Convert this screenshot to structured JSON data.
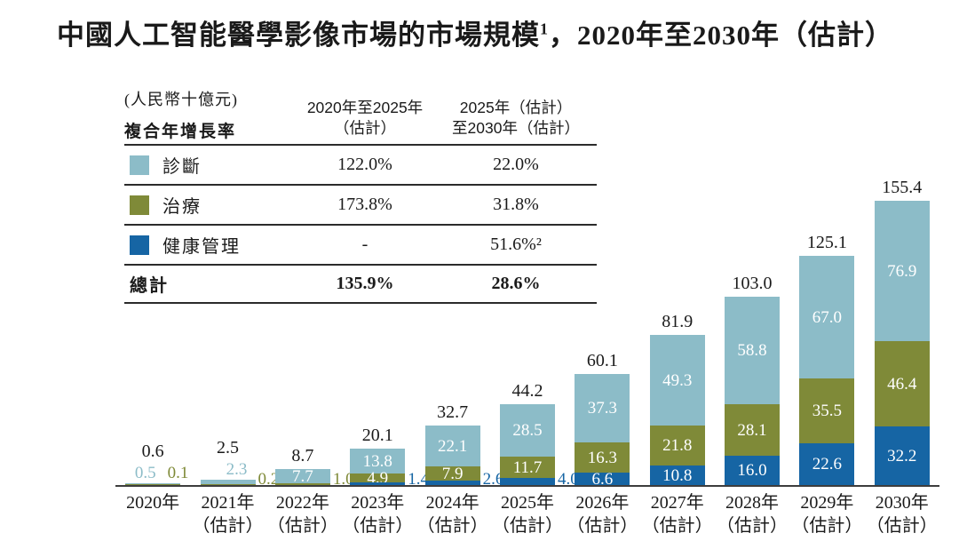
{
  "title": {
    "text": "中國人工智能醫學影像市場的市場規模",
    "footnote_marker": "1",
    "suffix": "，2020年至2030年（估計）"
  },
  "unit_note": "(人民幣十億元)",
  "cagr_table": {
    "row_header": "複合年增長率",
    "col1_header_line1": "2020年至2025年",
    "col1_header_line2": "（估計）",
    "col2_header_line1": "2025年（估計）",
    "col2_header_line2": "至2030年（估計）",
    "rows": [
      {
        "label": "診斷",
        "series": "diagnosis",
        "cagr_2020_2025": "122.0%",
        "cagr_2025_2030": "22.0%"
      },
      {
        "label": "治療",
        "series": "treatment",
        "cagr_2020_2025": "173.8%",
        "cagr_2025_2030": "31.8%"
      },
      {
        "label": "健康管理",
        "series": "health",
        "cagr_2020_2025": "-",
        "cagr_2025_2030": "51.6%²"
      }
    ],
    "total_row": {
      "label": "總計",
      "cagr_2020_2025": "135.9%",
      "cagr_2025_2030": "28.6%"
    }
  },
  "chart_data": {
    "type": "bar",
    "stacked": true,
    "unit": "人民幣十億元",
    "y_axis_visible": false,
    "ylim": [
      0,
      160
    ],
    "colors": {
      "axis": "#3d3d3d",
      "text": "#1a1a1a"
    },
    "series": [
      {
        "key": "diagnosis",
        "name": "診斷",
        "color": "#8CBCC8"
      },
      {
        "key": "treatment",
        "name": "治療",
        "color": "#7F8A38"
      },
      {
        "key": "health",
        "name": "健康管理",
        "color": "#1665A4"
      }
    ],
    "years": [
      {
        "label": "2020年",
        "sublabel": "",
        "total": 0.6,
        "total_label": "0.6",
        "segments": [
          {
            "series": "diagnosis",
            "value": 0.5,
            "display": "0.5",
            "label_pos": "above"
          },
          {
            "series": "treatment",
            "value": 0.1,
            "display": "0.1",
            "label_pos": "above"
          }
        ]
      },
      {
        "label": "2021年",
        "sublabel": "（估計）",
        "total": 2.5,
        "total_label": "2.5",
        "segments": [
          {
            "series": "diagnosis",
            "value": 2.3,
            "display": "2.3",
            "label_pos": "above"
          },
          {
            "series": "treatment",
            "value": 0.2,
            "display": "0.2",
            "label_pos": "right"
          }
        ]
      },
      {
        "label": "2022年",
        "sublabel": "（估計）",
        "total": 8.7,
        "total_label": "8.7",
        "segments": [
          {
            "series": "diagnosis",
            "value": 7.7,
            "display": "7.7",
            "label_pos": "inside"
          },
          {
            "series": "treatment",
            "value": 1.0,
            "display": "1.0",
            "label_pos": "right"
          }
        ]
      },
      {
        "label": "2023年",
        "sublabel": "（估計）",
        "total": 20.1,
        "total_label": "20.1",
        "segments": [
          {
            "series": "diagnosis",
            "value": 13.8,
            "display": "13.8",
            "label_pos": "inside"
          },
          {
            "series": "treatment",
            "value": 4.9,
            "display": "4.9",
            "label_pos": "inside"
          },
          {
            "series": "health",
            "value": 1.4,
            "display": "1.4",
            "label_pos": "right"
          }
        ]
      },
      {
        "label": "2024年",
        "sublabel": "（估計）",
        "total": 32.7,
        "total_label": "32.7",
        "segments": [
          {
            "series": "diagnosis",
            "value": 22.1,
            "display": "22.1",
            "label_pos": "inside"
          },
          {
            "series": "treatment",
            "value": 7.9,
            "display": "7.9",
            "label_pos": "inside"
          },
          {
            "series": "health",
            "value": 2.6,
            "display": "2.6",
            "label_pos": "right"
          }
        ]
      },
      {
        "label": "2025年",
        "sublabel": "（估計）",
        "total": 44.2,
        "total_label": "44.2",
        "segments": [
          {
            "series": "diagnosis",
            "value": 28.5,
            "display": "28.5",
            "label_pos": "inside"
          },
          {
            "series": "treatment",
            "value": 11.7,
            "display": "11.7",
            "label_pos": "inside"
          },
          {
            "series": "health",
            "value": 4.0,
            "display": "4.0",
            "label_pos": "right"
          }
        ]
      },
      {
        "label": "2026年",
        "sublabel": "（估計）",
        "total": 60.1,
        "total_label": "60.1",
        "segments": [
          {
            "series": "diagnosis",
            "value": 37.3,
            "display": "37.3",
            "label_pos": "inside"
          },
          {
            "series": "treatment",
            "value": 16.3,
            "display": "16.3",
            "label_pos": "inside"
          },
          {
            "series": "health",
            "value": 6.6,
            "display": "6.6",
            "label_pos": "inside"
          }
        ]
      },
      {
        "label": "2027年",
        "sublabel": "（估計）",
        "total": 81.9,
        "total_label": "81.9",
        "segments": [
          {
            "series": "diagnosis",
            "value": 49.3,
            "display": "49.3",
            "label_pos": "inside"
          },
          {
            "series": "treatment",
            "value": 21.8,
            "display": "21.8",
            "label_pos": "inside"
          },
          {
            "series": "health",
            "value": 10.8,
            "display": "10.8",
            "label_pos": "inside"
          }
        ]
      },
      {
        "label": "2028年",
        "sublabel": "（估計）",
        "total": 103.0,
        "total_label": "103.0",
        "segments": [
          {
            "series": "diagnosis",
            "value": 58.8,
            "display": "58.8",
            "label_pos": "inside"
          },
          {
            "series": "treatment",
            "value": 28.1,
            "display": "28.1",
            "label_pos": "inside"
          },
          {
            "series": "health",
            "value": 16.0,
            "display": "16.0",
            "label_pos": "inside"
          }
        ]
      },
      {
        "label": "2029年",
        "sublabel": "（估計）",
        "total": 125.1,
        "total_label": "125.1",
        "segments": [
          {
            "series": "diagnosis",
            "value": 67.0,
            "display": "67.0",
            "label_pos": "inside"
          },
          {
            "series": "treatment",
            "value": 35.5,
            "display": "35.5",
            "label_pos": "inside"
          },
          {
            "series": "health",
            "value": 22.6,
            "display": "22.6",
            "label_pos": "inside"
          }
        ]
      },
      {
        "label": "2030年",
        "sublabel": "（估計）",
        "total": 155.4,
        "total_label": "155.4",
        "segments": [
          {
            "series": "diagnosis",
            "value": 76.9,
            "display": "76.9",
            "label_pos": "inside"
          },
          {
            "series": "treatment",
            "value": 46.4,
            "display": "46.4",
            "label_pos": "inside"
          },
          {
            "series": "health",
            "value": 32.2,
            "display": "32.2",
            "label_pos": "inside"
          }
        ]
      }
    ]
  }
}
